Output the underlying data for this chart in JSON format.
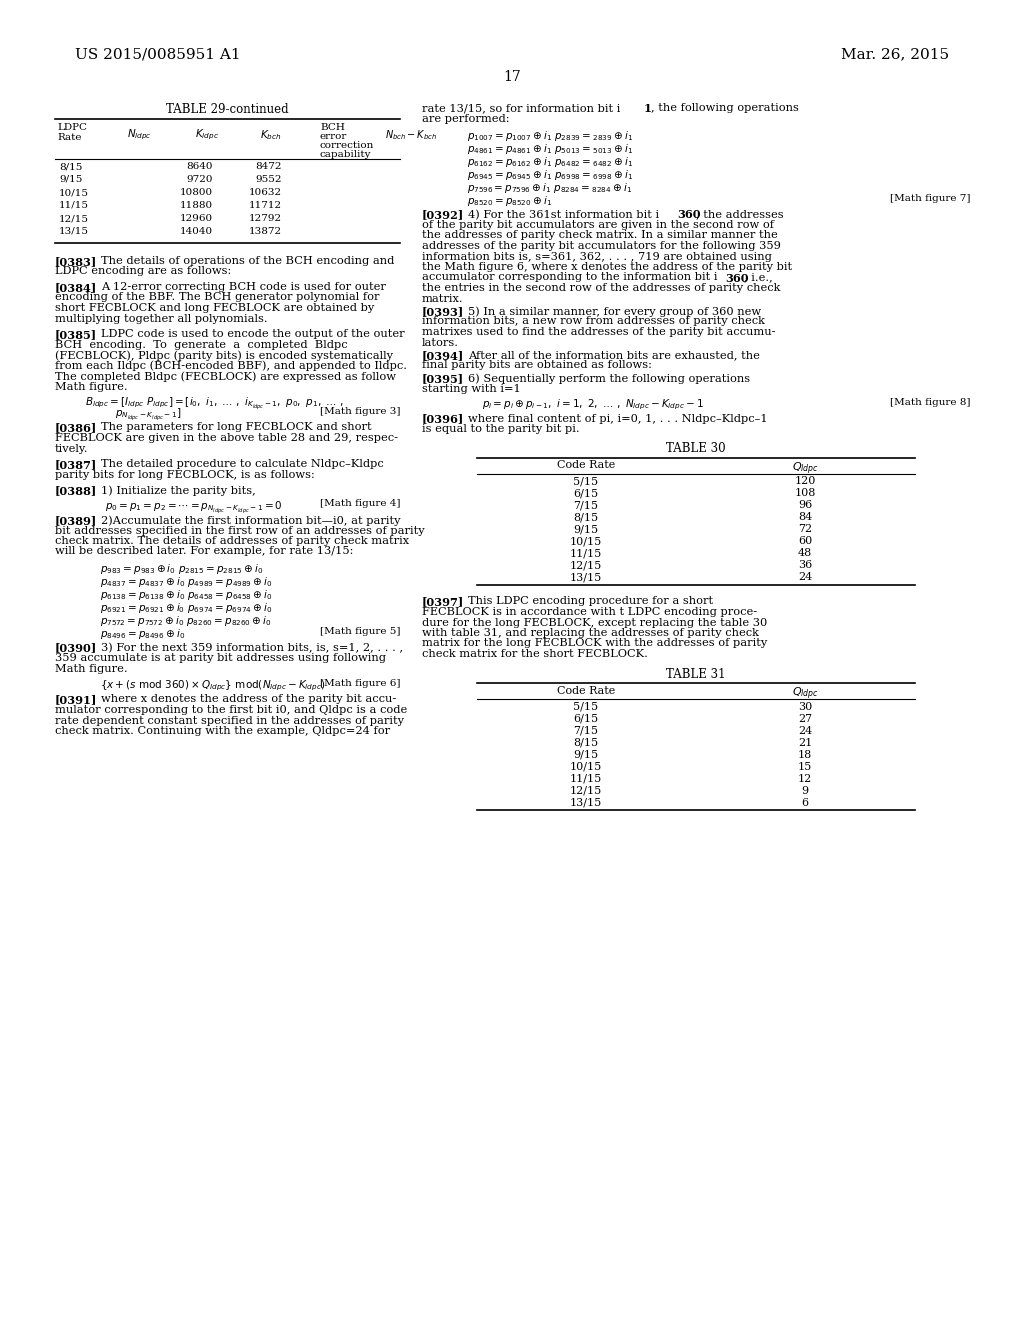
{
  "bg": "#ffffff",
  "header_left": "US 2015/0085951 A1",
  "header_right": "Mar. 26, 2015",
  "page_num": "17"
}
